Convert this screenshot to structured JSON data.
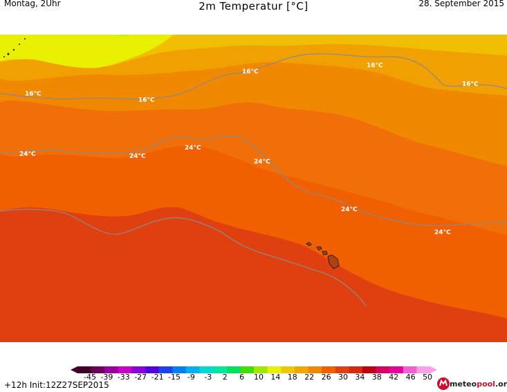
{
  "header": {
    "left": "Montag, 2Uhr",
    "title": "2m Temperatur [°C]",
    "right": "28. September 2015"
  },
  "map": {
    "isotherm_labels": [
      "16°C",
      "16°C",
      "16°C",
      "16°C",
      "16°C",
      "24°C",
      "24°C",
      "24°C",
      "24°C",
      "24°C",
      "24°C"
    ],
    "colors": {
      "t6": "#c8f000",
      "t10": "#e8f000",
      "t14": "#f0c800",
      "t18": "#f0a800",
      "t22": "#f08800",
      "t26": "#f06000",
      "t30": "#e04010",
      "t34": "#d82810",
      "contour": "#8a8a8a"
    }
  },
  "legend": {
    "ticks": [
      "-45",
      "-39",
      "-33",
      "-27",
      "-21",
      "-15",
      "-9",
      "-3",
      "2",
      "6",
      "10",
      "14",
      "18",
      "22",
      "26",
      "30",
      "34",
      "38",
      "42",
      "46",
      "50"
    ],
    "colors": [
      "#400028",
      "#6a005a",
      "#9a00a0",
      "#c800c8",
      "#8a00d8",
      "#5000e0",
      "#2040f0",
      "#0080f0",
      "#00b0f0",
      "#00d8d0",
      "#00e8a0",
      "#00e060",
      "#40e000",
      "#a0e800",
      "#e8f000",
      "#f0c800",
      "#f0a800",
      "#f08800",
      "#f06000",
      "#e04010",
      "#d82810",
      "#c00010",
      "#d80060",
      "#e800a0",
      "#f060d0",
      "#f8a0e8"
    ]
  },
  "footer": {
    "init": "+12h  Init:12Z27SEP2015",
    "logo_text_a": "meteo",
    "logo_text_b": "pool",
    "logo_text_c": ".org"
  }
}
